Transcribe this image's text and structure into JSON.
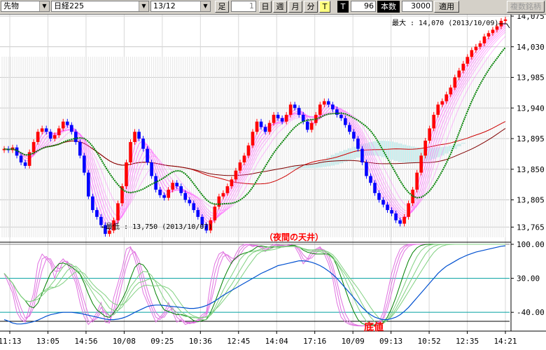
{
  "toolbar": {
    "instrument": "先物",
    "index": "日経225",
    "contract": "13/12",
    "period_label": "足",
    "period_value": "1",
    "btn_day": "日",
    "btn_week": "週",
    "btn_month": "月",
    "btn_minute": "分",
    "btn_t_active": "T",
    "btn_t": "T",
    "t_value": "96",
    "count_label": "本数",
    "count_value": "3000",
    "apply": "適用",
    "multi": "複数銘柄"
  },
  "chart": {
    "price_axis": [
      "14,075",
      "14,030",
      "13,985",
      "13,940",
      "13,895",
      "13,850",
      "13,805",
      "13,765"
    ],
    "osc_axis": [
      "100.00",
      "30.00",
      "-40.00"
    ],
    "time_axis": [
      "11:13",
      "13:05",
      "14:56",
      "10/08",
      "09:25",
      "10:36",
      "12:45",
      "14:04",
      "17:16",
      "10/09",
      "09:13",
      "10:52",
      "12:35",
      "14:21"
    ],
    "max_label": "最大 : 14,070 (2013/10/09)",
    "min_label": "←最低 : 13,750 (2013/10/07)",
    "annotation_top": "（夜間の天井）",
    "annotation_bottom": "底値",
    "colors": {
      "up_candle": "#ff0000",
      "down_candle": "#0000ff",
      "ribbon": "#ff66ff",
      "green_ma": "#008000",
      "red_ma_1": "#cc0000",
      "red_ma_2": "#800000",
      "cloud": "#c8f0f0",
      "annotation": "#ff0000"
    }
  },
  "chart_data": {
    "type": "candlestick",
    "price_range": [
      13750,
      14075
    ],
    "osc_range": [
      -70,
      100
    ],
    "max": 14070,
    "min": 13750,
    "close_path": [
      13880,
      13878,
      13882,
      13870,
      13860,
      13855,
      13875,
      13890,
      13905,
      13910,
      13905,
      13895,
      13900,
      13910,
      13920,
      13915,
      13905,
      13890,
      13870,
      13845,
      13810,
      13790,
      13780,
      13768,
      13755,
      13760,
      13775,
      13800,
      13825,
      13860,
      13890,
      13905,
      13895,
      13880,
      13860,
      13840,
      13820,
      13812,
      13808,
      13820,
      13830,
      13825,
      13815,
      13805,
      13800,
      13790,
      13780,
      13768,
      13760,
      13775,
      13795,
      13810,
      13815,
      13825,
      13835,
      13848,
      13860,
      13870,
      13885,
      13905,
      13920,
      13912,
      13905,
      13918,
      13930,
      13925,
      13920,
      13930,
      13945,
      13940,
      13930,
      13920,
      13908,
      13918,
      13930,
      13945,
      13950,
      13945,
      13938,
      13930,
      13925,
      13915,
      13905,
      13895,
      13880,
      13860,
      13840,
      13830,
      13815,
      13805,
      13798,
      13790,
      13785,
      13775,
      13770,
      13780,
      13800,
      13820,
      13845,
      13870,
      13892,
      13910,
      13930,
      13945,
      13950,
      13960,
      13970,
      13985,
      13995,
      14005,
      14015,
      14025,
      14030,
      14035,
      14045,
      14050,
      14055,
      14060,
      14068,
      14070
    ],
    "osc_fast": [
      40,
      20,
      0,
      -40,
      -55,
      -60,
      -30,
      0,
      60,
      80,
      70,
      60,
      30,
      60,
      70,
      60,
      40,
      20,
      -20,
      -50,
      -65,
      -55,
      -40,
      -20,
      -60,
      -62,
      -10,
      20,
      50,
      90,
      95,
      70,
      40,
      0,
      -20,
      -40,
      -60,
      -50,
      -40,
      -20,
      -40,
      -60,
      -55,
      -65,
      -62,
      -60,
      -55,
      -45,
      -40,
      20,
      60,
      80,
      85,
      70,
      60,
      80,
      95,
      100,
      100,
      95,
      98,
      92,
      85,
      95,
      100,
      98,
      96,
      97,
      100,
      95,
      80,
      60,
      70,
      85,
      90,
      95,
      80,
      60,
      30,
      -20,
      -50,
      -60,
      -65,
      -67,
      -68,
      -68,
      -67,
      -66,
      -65,
      -60,
      -40,
      0,
      40,
      70,
      90,
      97,
      100,
      100,
      100,
      100,
      100,
      100,
      100,
      100,
      100,
      100,
      100,
      100,
      100,
      100,
      100,
      100,
      100,
      100,
      100,
      100,
      100,
      100,
      100,
      100
    ],
    "osc_slow": [
      -55,
      -58,
      -62,
      -64,
      -64,
      -63,
      -61,
      -59,
      -56,
      -52,
      -48,
      -45,
      -43,
      -41,
      -40,
      -40,
      -40,
      -41,
      -42,
      -44,
      -46,
      -48,
      -50,
      -52,
      -54,
      -55,
      -55,
      -54,
      -52,
      -49,
      -45,
      -40,
      -36,
      -32,
      -28,
      -26,
      -25,
      -25,
      -26,
      -27,
      -28,
      -29,
      -30,
      -31,
      -32,
      -32,
      -31,
      -29,
      -26,
      -22,
      -17,
      -11,
      -5,
      0,
      5,
      10,
      15,
      20,
      25,
      30,
      35,
      40,
      44,
      48,
      52,
      56,
      58,
      60,
      62,
      64,
      66,
      66,
      65,
      63,
      60,
      56,
      51,
      45,
      38,
      30,
      20,
      10,
      0,
      -10,
      -20,
      -30,
      -38,
      -45,
      -50,
      -53,
      -55,
      -55,
      -53,
      -50,
      -45,
      -38,
      -30,
      -20,
      -10,
      0,
      10,
      20,
      30,
      40,
      48,
      55,
      60,
      65,
      70,
      74,
      78,
      81,
      84,
      86,
      88,
      90,
      92,
      94,
      96,
      97
    ]
  }
}
